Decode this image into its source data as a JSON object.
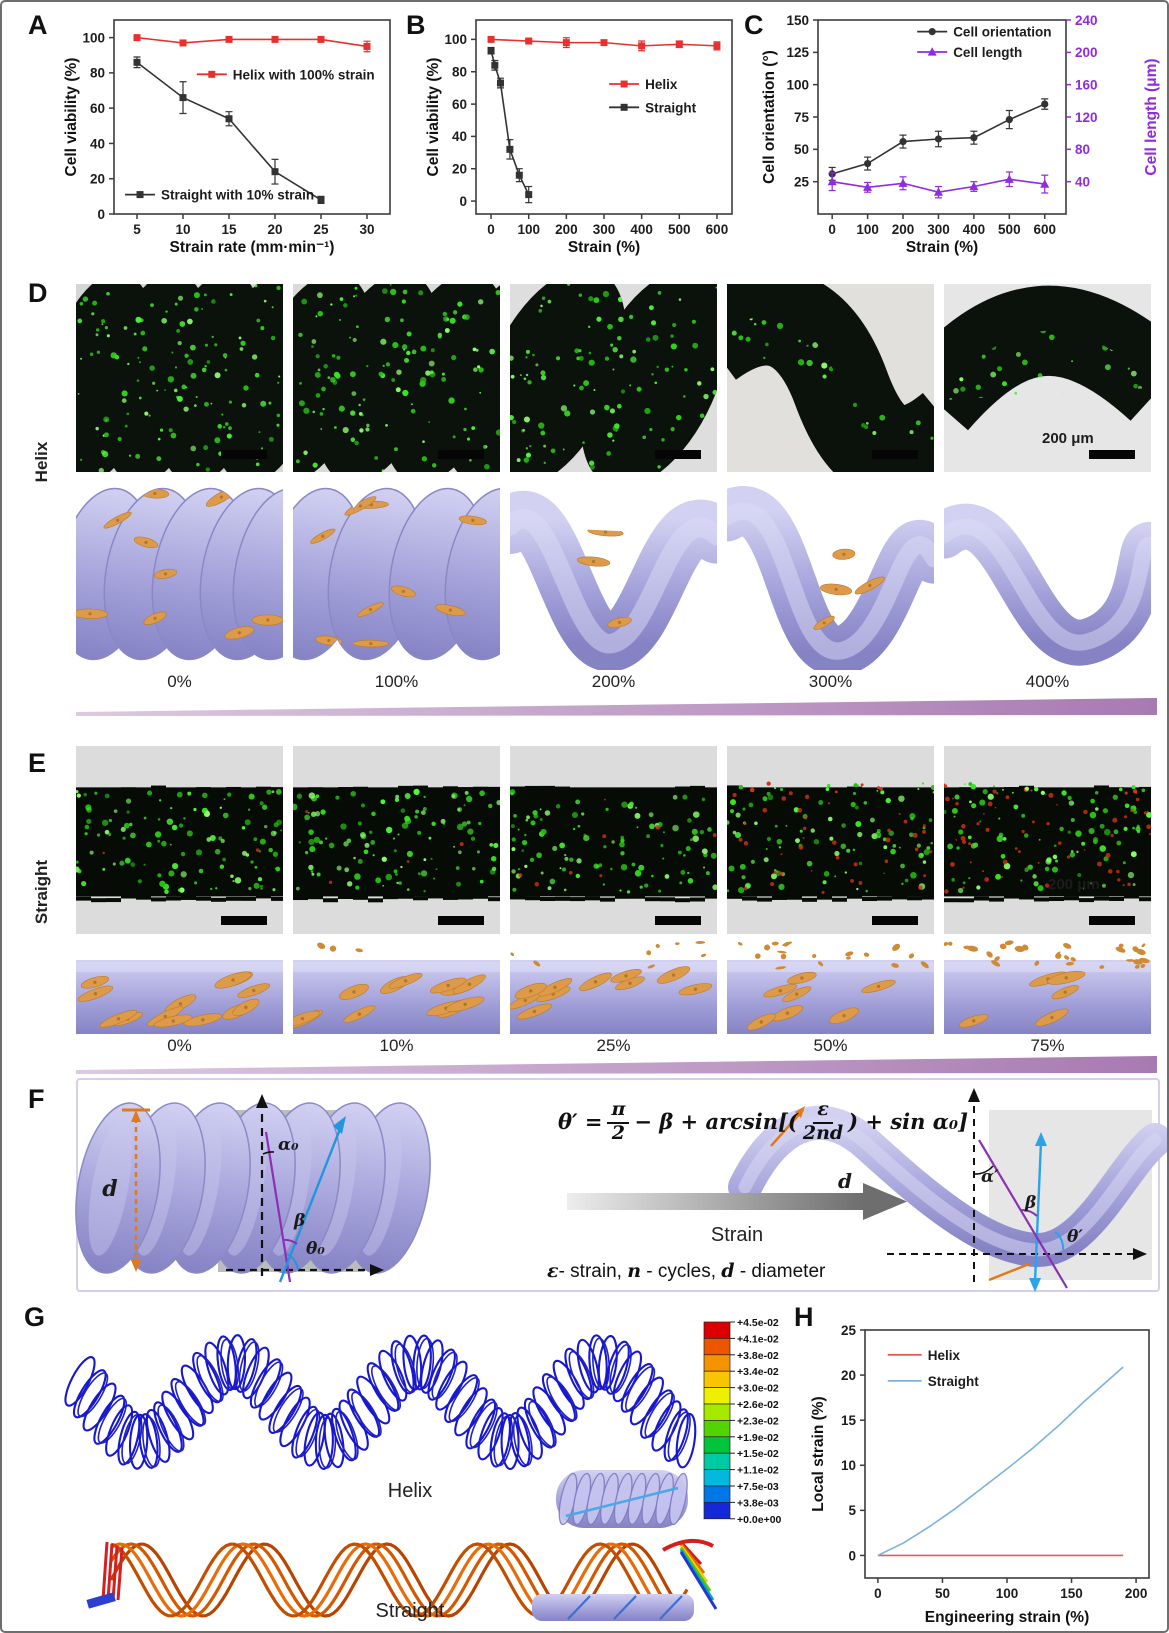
{
  "panels": {
    "A": {
      "label": "A"
    },
    "B": {
      "label": "B"
    },
    "C": {
      "label": "C"
    },
    "D": {
      "label": "D",
      "side_label": "Helix",
      "strain_labels": [
        "0%",
        "100%",
        "200%",
        "300%",
        "400%"
      ],
      "scale_label": "200 μm"
    },
    "E": {
      "label": "E",
      "side_label": "Straight",
      "strain_labels": [
        "0%",
        "10%",
        "25%",
        "50%",
        "75%"
      ],
      "scale_label": "200 μm"
    },
    "F": {
      "label": "F",
      "formula": {
        "lhs": "θ′ =",
        "num1": "π",
        "den1": "2",
        "mid": "− β + arcsin[(",
        "num2": "ε",
        "den2": "2nd",
        "tail": ") + sin α₀]"
      },
      "arrow_label": "Strain",
      "eps_parts": [
        [
          "ε",
          1
        ],
        [
          "- strain, ",
          0
        ],
        [
          "n",
          1
        ],
        [
          " - cycles, ",
          0
        ],
        [
          "d",
          1
        ],
        [
          " - diameter",
          0
        ]
      ],
      "left_labels": {
        "d": "d",
        "alpha": "α₀",
        "beta": "β",
        "theta": "θ₀"
      },
      "right_labels": {
        "d": "d",
        "alpha": "α′",
        "beta": "β",
        "theta": "θ′"
      }
    },
    "G": {
      "label": "G",
      "helix_label": "Helix",
      "straight_label": "Straight",
      "colorbar_labels": [
        "+4.5e-02",
        "+4.1e-02",
        "+3.8e-02",
        "+3.4e-02",
        "+3.0e-02",
        "+2.6e-02",
        "+2.3e-02",
        "+1.9e-02",
        "+1.5e-02",
        "+1.1e-02",
        "+7.5e-03",
        "+3.8e-03",
        "+0.0e+00"
      ],
      "colorbar_colors": [
        "#dd0000",
        "#ee5500",
        "#f59300",
        "#f7c600",
        "#eef000",
        "#a6e800",
        "#52d400",
        "#00c43a",
        "#00c9a6",
        "#00b9dd",
        "#0077e8",
        "#1428d8"
      ]
    },
    "H": {
      "label": "H"
    }
  },
  "chart_data": [
    {
      "panel": "A",
      "type": "line",
      "title": "",
      "xlabel": "Strain rate (mm·min⁻¹)",
      "ylabel": "Cell viability (%)",
      "xlim": [
        2.5,
        32.5
      ],
      "ylim": [
        0,
        110
      ],
      "xticks": [
        5,
        10,
        15,
        20,
        25,
        30
      ],
      "yticks": [
        0,
        20,
        40,
        60,
        80,
        100
      ],
      "series": [
        {
          "name": "Helix with 100% strain",
          "color": "#e8312f",
          "marker": "square",
          "x": [
            5,
            10,
            15,
            20,
            25,
            30
          ],
          "y": [
            100,
            97,
            99,
            99,
            99,
            95
          ],
          "err": [
            1.5,
            1.5,
            1,
            1,
            1.5,
            3
          ]
        },
        {
          "name": "Straight with 10% strain",
          "color": "#333333",
          "marker": "square",
          "x": [
            5,
            10,
            15,
            20,
            25
          ],
          "y": [
            86,
            66,
            54,
            24,
            8
          ],
          "err": [
            3,
            9,
            4,
            7,
            2
          ]
        }
      ],
      "legend": [
        {
          "si": 0,
          "fx": 0.3,
          "fy": 0.28
        },
        {
          "si": 1,
          "fx": 0.04,
          "fy": 0.9
        }
      ]
    },
    {
      "panel": "B",
      "type": "line",
      "title": "",
      "xlabel": "Strain (%)",
      "ylabel": "Cell viability (%)",
      "xlim": [
        -40,
        640
      ],
      "ylim": [
        -8,
        112
      ],
      "xticks": [
        0,
        100,
        200,
        300,
        400,
        500,
        600
      ],
      "yticks": [
        0,
        20,
        40,
        60,
        80,
        100
      ],
      "series": [
        {
          "name": "Helix",
          "color": "#e8312f",
          "marker": "square",
          "x": [
            0,
            100,
            200,
            300,
            400,
            500,
            600
          ],
          "y": [
            100,
            99,
            98,
            98,
            96,
            97,
            96
          ],
          "err": [
            1,
            1,
            3,
            1.5,
            3,
            2,
            2.5
          ]
        },
        {
          "name": "Straight",
          "color": "#333333",
          "marker": "square",
          "x": [
            0,
            10,
            25,
            50,
            75,
            100
          ],
          "y": [
            93,
            84,
            73,
            32,
            16,
            4
          ],
          "err": [
            2,
            3,
            3,
            6,
            4,
            5
          ]
        }
      ],
      "legend": [
        {
          "si": 0,
          "fx": 0.52,
          "fy": 0.33
        },
        {
          "si": 1,
          "fx": 0.52,
          "fy": 0.45
        }
      ]
    },
    {
      "panel": "C",
      "type": "line",
      "title": "",
      "xlabel": "Strain (%)",
      "ylabel": "Cell orientation (°)",
      "ylabel2": "Cell length (μm)",
      "xlim": [
        -40,
        660
      ],
      "ylim": [
        0,
        150
      ],
      "ylim2": [
        0,
        240
      ],
      "xticks": [
        0,
        100,
        200,
        300,
        400,
        500,
        600
      ],
      "yticks": [
        25,
        50,
        75,
        100,
        125,
        150
      ],
      "yticks2": [
        40,
        80,
        120,
        160,
        200,
        240
      ],
      "series": [
        {
          "name": "Cell orientation",
          "color": "#333333",
          "marker": "circle",
          "x": [
            0,
            100,
            200,
            300,
            400,
            500,
            600
          ],
          "y": [
            31,
            39,
            56,
            58,
            59,
            73,
            85
          ],
          "err": [
            5,
            5,
            5,
            6,
            5,
            7,
            4
          ]
        },
        {
          "name": "Cell length",
          "color": "#8f2be0",
          "marker": "triangle",
          "axis": 2,
          "x": [
            0,
            100,
            200,
            300,
            400,
            500,
            600
          ],
          "y": [
            40,
            33,
            38,
            27,
            34,
            43,
            37
          ],
          "err": [
            11,
            6,
            8,
            7,
            6,
            9,
            11
          ]
        }
      ],
      "legend": [
        {
          "si": 0,
          "fx": 0.4,
          "fy": 0.06
        },
        {
          "si": 1,
          "fx": 0.4,
          "fy": 0.165
        }
      ]
    },
    {
      "panel": "H",
      "type": "line",
      "title": "",
      "xlabel": "Engineering strain (%)",
      "ylabel": "Local strain (%)",
      "xlim": [
        -10,
        210
      ],
      "ylim": [
        -2.5,
        25
      ],
      "xticks": [
        0,
        50,
        100,
        150,
        200
      ],
      "yticks": [
        0,
        5,
        10,
        15,
        20,
        25
      ],
      "series": [
        {
          "name": "Helix",
          "color": "#e05c5c",
          "marker": "none",
          "x": [
            0,
            190
          ],
          "y": [
            0,
            0
          ]
        },
        {
          "name": "Straight",
          "color": "#7ab3de",
          "marker": "none",
          "x": [
            0,
            20,
            40,
            60,
            80,
            100,
            120,
            140,
            160,
            175,
            190
          ],
          "y": [
            0,
            1.4,
            3.2,
            5.2,
            7.4,
            9.6,
            11.9,
            14.4,
            17.1,
            19.0,
            20.9
          ]
        }
      ],
      "legend": [
        {
          "si": 0,
          "fx": 0.08,
          "fy": 0.1
        },
        {
          "si": 1,
          "fx": 0.08,
          "fy": 0.205
        }
      ],
      "legend_line_only": true
    }
  ]
}
